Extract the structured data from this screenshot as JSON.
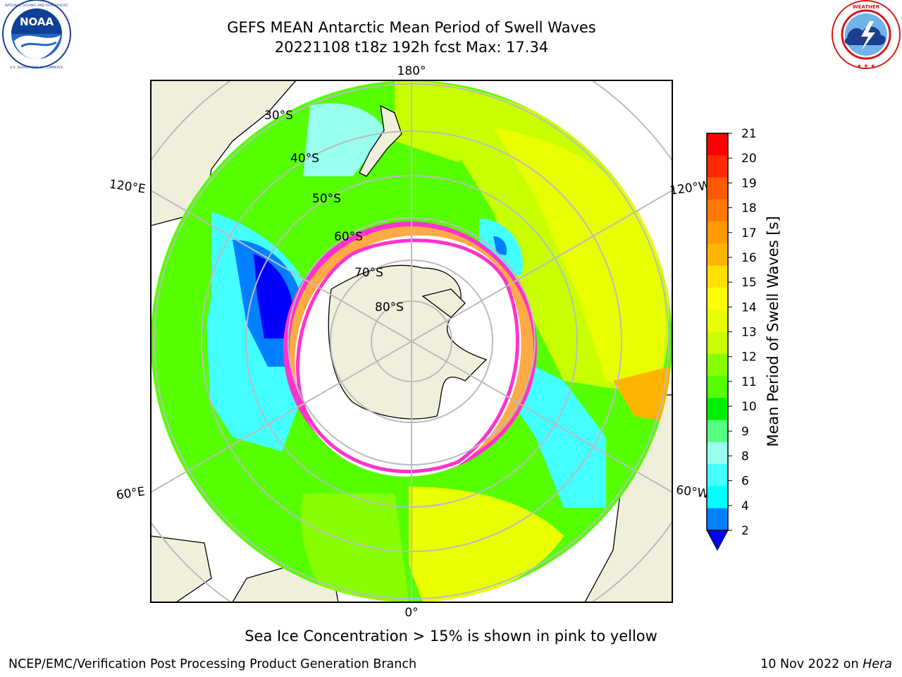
{
  "header": {
    "title_line1": "GEFS MEAN Antarctic Mean Period of Swell Waves",
    "title_line2": "20221108 t18z 192h fcst   Max: 17.34"
  },
  "logos": {
    "left": {
      "icon": "noaa-logo",
      "text": "NOAA",
      "ring_text": "NATIONAL OCEANIC AND ATMOSPHERIC ADMINISTRATION · U.S. DEPARTMENT OF COMMERCE"
    },
    "right": {
      "icon": "nws-logo",
      "ring_text": "NATIONAL WEATHER SERVICE"
    }
  },
  "map": {
    "projection": "south-polar-stereographic",
    "longitude_labels": {
      "top": "180°",
      "left_upper": "120°E",
      "right_upper": "120°W",
      "left_lower": "60°E",
      "right_lower": "60°W",
      "bottom": "0°"
    },
    "latitude_labels": [
      "30°S",
      "40°S",
      "50°S",
      "60°S",
      "70°S",
      "80°S"
    ],
    "colors": {
      "land": "#efefdc",
      "ice": "#ffffff",
      "ice_edge_pink": "#ff33cc",
      "ice_edge_orange": "#ffaa44",
      "grid": "#bbbbbb"
    }
  },
  "colorbar": {
    "label": "Mean Period of Swell Waves [s]",
    "ticks": [
      "21",
      "20",
      "19",
      "18",
      "17",
      "16",
      "15",
      "14",
      "13",
      "12",
      "11",
      "10",
      "9",
      "8",
      "6",
      "4",
      "2"
    ],
    "colors_top_to_bottom": [
      "#ff0000",
      "#ff2a00",
      "#ff5a00",
      "#ff7800",
      "#ff9a00",
      "#ffb400",
      "#ffe000",
      "#ffff00",
      "#e8ff00",
      "#c8ff00",
      "#88ff00",
      "#55ff00",
      "#00ee00",
      "#55ff80",
      "#99ffee",
      "#44ffff",
      "#00ffff",
      "#0080ff"
    ],
    "extend_color": "#0000ff"
  },
  "caption": "Sea Ice Concentration > 15% is shown in pink to yellow",
  "footer": {
    "left": "NCEP/EMC/Verification Post Processing Product Generation Branch",
    "right_date": "10 Nov 2022 on ",
    "right_machine": "Hera"
  }
}
